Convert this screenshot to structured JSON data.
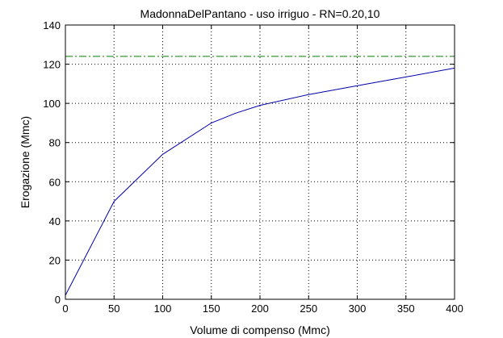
{
  "chart_data": {
    "type": "line",
    "title": "MadonnaDelPantano  -  uso irriguo  -   RN=0.20,10",
    "xlabel": "Volume di compenso (Mmc)",
    "ylabel": "Erogazione (Mmc)",
    "xlim": [
      0,
      400
    ],
    "ylim": [
      0,
      140
    ],
    "xticks": [
      0,
      50,
      100,
      150,
      200,
      250,
      300,
      350,
      400
    ],
    "yticks": [
      0,
      20,
      40,
      60,
      80,
      100,
      120,
      140
    ],
    "grid": true,
    "series": [
      {
        "style": "solid",
        "color": "#0000aa",
        "x": [
          0,
          50,
          100,
          150,
          175,
          200,
          250,
          300,
          350,
          400
        ],
        "y": [
          2,
          50,
          74,
          90,
          95,
          99,
          104.5,
          109,
          113.5,
          118
        ]
      },
      {
        "style": "dash-dot",
        "color": "#008000",
        "x": [
          0,
          400
        ],
        "y": [
          124,
          124
        ]
      }
    ]
  }
}
